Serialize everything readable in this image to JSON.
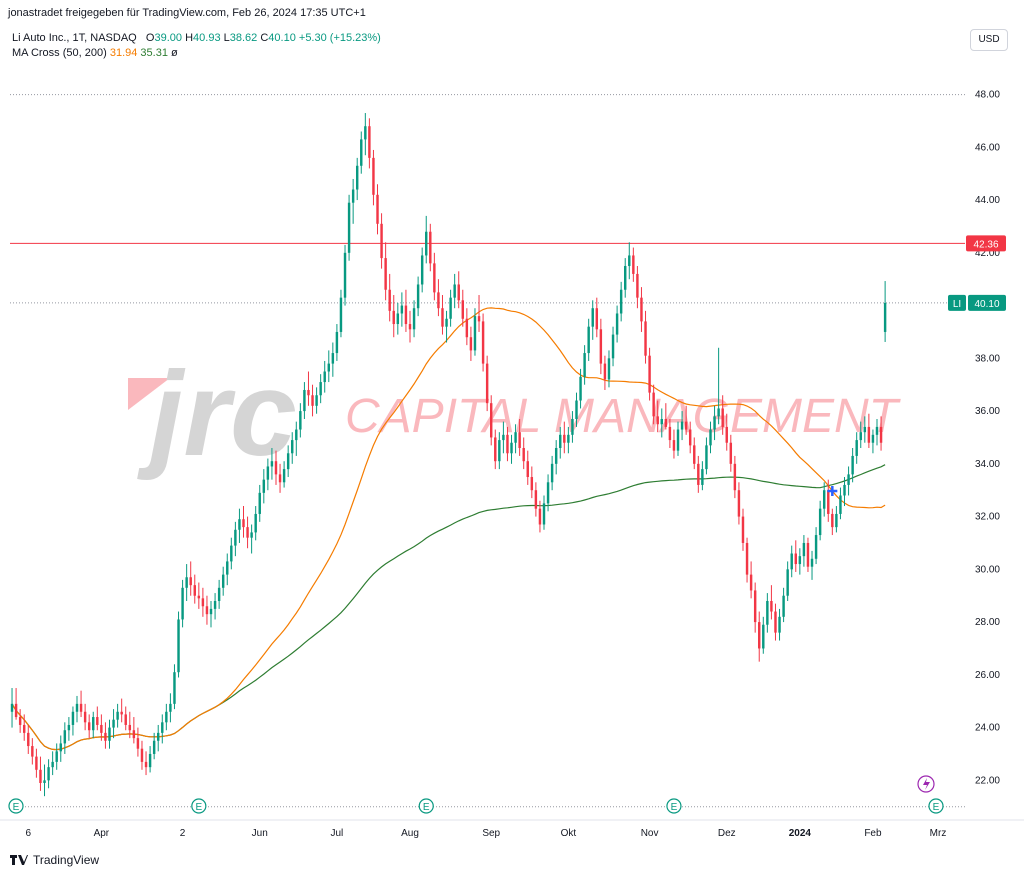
{
  "header": {
    "shared_by": "jonastradet freigegeben für TradingView.com, Feb 26, 2024 17:35 UTC+1"
  },
  "legend": {
    "symbol": "Li Auto Inc., 1T, NASDAQ",
    "open_label": "O",
    "open": "39.00",
    "high_label": "H",
    "high": "40.93",
    "low_label": "L",
    "low": "38.62",
    "close_label": "C",
    "close": "40.10",
    "change": "+5.30 (+15.23%)",
    "indicator": "MA Cross (50, 200)",
    "ma50": "31.94",
    "ma200": "35.31",
    "hidden_symbol": "ø"
  },
  "currency": "USD",
  "watermark": {
    "logo": "jrc",
    "text": "CAPITAL MANAGEMENT"
  },
  "price_labels": {
    "resistance": "42.36",
    "ticker": "LI",
    "last": "40.10"
  },
  "footer": {
    "brand": "TradingView"
  },
  "colors": {
    "up": "#089981",
    "down": "#f23645",
    "ma50": "#f57c00",
    "ma200": "#2e7d32",
    "resistance": "#f23645",
    "earnings": "#089981",
    "dividend": "#9c27b0"
  },
  "chart_data": {
    "type": "candlestick",
    "ylim": [
      20.8,
      49.5
    ],
    "y_ticks": [
      22,
      24,
      26,
      28,
      30,
      32,
      34,
      36,
      38,
      40,
      42,
      44,
      46,
      48
    ],
    "y_tick_labels": [
      "22.00",
      "24.00",
      "26.00",
      "28.00",
      "30.00",
      "32.00",
      "34.00",
      "36.00",
      "38.00",
      "40.00",
      "42.00",
      "44.00",
      "46.00",
      "48.00"
    ],
    "x_tick_labels": [
      "6",
      "Apr",
      "2",
      "Jun",
      "Jul",
      "Aug",
      "Sep",
      "Okt",
      "Nov",
      "Dez",
      "2024",
      "Feb",
      "Mrz"
    ],
    "x_tick_bold": [
      false,
      false,
      false,
      false,
      false,
      false,
      false,
      false,
      false,
      false,
      true,
      false,
      false
    ],
    "n_bars": 230,
    "x_tick_bars": [
      4,
      22,
      42,
      61,
      80,
      98,
      118,
      137,
      157,
      176,
      194,
      212,
      229
    ],
    "resistance_level": 42.36,
    "last_price": 40.1,
    "reference_levels": [
      48.0,
      40.1,
      21.0
    ],
    "ohlc": [
      [
        24.6,
        25.5,
        24.0,
        24.9
      ],
      [
        24.9,
        25.5,
        24.3,
        24.4
      ],
      [
        24.4,
        24.7,
        23.8,
        24.1
      ],
      [
        24.1,
        24.5,
        23.5,
        23.8
      ],
      [
        23.8,
        24.1,
        23.0,
        23.3
      ],
      [
        23.3,
        23.6,
        22.6,
        22.9
      ],
      [
        22.9,
        23.2,
        22.1,
        22.4
      ],
      [
        22.4,
        22.9,
        21.6,
        21.9
      ],
      [
        21.9,
        22.6,
        21.4,
        22.0
      ],
      [
        22.0,
        22.8,
        21.7,
        22.5
      ],
      [
        22.5,
        23.1,
        22.2,
        22.7
      ],
      [
        22.7,
        23.4,
        22.4,
        23.1
      ],
      [
        23.1,
        23.7,
        22.7,
        23.4
      ],
      [
        23.4,
        24.2,
        23.0,
        23.9
      ],
      [
        23.9,
        24.4,
        23.5,
        24.1
      ],
      [
        24.1,
        24.8,
        23.7,
        24.6
      ],
      [
        24.6,
        25.2,
        24.2,
        24.9
      ],
      [
        24.9,
        25.4,
        24.4,
        24.6
      ],
      [
        24.6,
        24.9,
        23.9,
        24.2
      ],
      [
        24.2,
        24.5,
        23.6,
        23.9
      ],
      [
        23.9,
        24.6,
        23.6,
        24.4
      ],
      [
        24.4,
        24.8,
        23.9,
        24.1
      ],
      [
        24.1,
        24.5,
        23.5,
        23.8
      ],
      [
        23.8,
        24.2,
        23.2,
        23.5
      ],
      [
        23.5,
        24.3,
        23.2,
        24.0
      ],
      [
        24.0,
        24.7,
        23.6,
        24.3
      ],
      [
        24.3,
        24.9,
        24.0,
        24.6
      ],
      [
        24.6,
        25.1,
        24.2,
        24.5
      ],
      [
        24.5,
        24.8,
        23.9,
        24.1
      ],
      [
        24.1,
        24.6,
        23.6,
        23.9
      ],
      [
        23.9,
        24.4,
        23.4,
        23.6
      ],
      [
        23.6,
        24.0,
        22.9,
        23.2
      ],
      [
        23.2,
        23.5,
        22.4,
        22.7
      ],
      [
        22.7,
        23.1,
        22.2,
        22.5
      ],
      [
        22.5,
        23.3,
        22.3,
        23.0
      ],
      [
        23.0,
        23.8,
        22.8,
        23.5
      ],
      [
        23.5,
        24.1,
        23.1,
        23.8
      ],
      [
        23.8,
        24.5,
        23.4,
        24.2
      ],
      [
        24.2,
        24.9,
        23.9,
        24.6
      ],
      [
        24.6,
        25.3,
        24.2,
        24.9
      ],
      [
        24.9,
        26.4,
        24.7,
        26.1
      ],
      [
        26.1,
        28.4,
        25.9,
        28.1
      ],
      [
        28.1,
        29.6,
        27.8,
        29.3
      ],
      [
        29.3,
        30.2,
        28.8,
        29.7
      ],
      [
        29.7,
        30.3,
        29.0,
        29.4
      ],
      [
        29.4,
        29.8,
        28.7,
        29.0
      ],
      [
        29.0,
        29.5,
        28.5,
        28.9
      ],
      [
        28.9,
        29.3,
        28.2,
        28.6
      ],
      [
        28.6,
        29.0,
        27.9,
        28.3
      ],
      [
        28.3,
        28.8,
        27.8,
        28.5
      ],
      [
        28.5,
        29.1,
        28.1,
        28.8
      ],
      [
        28.8,
        29.6,
        28.5,
        29.3
      ],
      [
        29.3,
        30.1,
        29.0,
        29.8
      ],
      [
        29.8,
        30.6,
        29.4,
        30.3
      ],
      [
        30.3,
        31.2,
        30.0,
        30.9
      ],
      [
        30.9,
        31.8,
        30.5,
        31.5
      ],
      [
        31.5,
        32.3,
        31.0,
        31.9
      ],
      [
        31.9,
        32.4,
        31.2,
        31.6
      ],
      [
        31.6,
        32.0,
        30.8,
        31.2
      ],
      [
        31.2,
        31.7,
        30.6,
        31.4
      ],
      [
        31.4,
        32.4,
        31.1,
        32.1
      ],
      [
        32.1,
        33.2,
        31.8,
        32.9
      ],
      [
        32.9,
        33.8,
        32.5,
        33.4
      ],
      [
        33.4,
        34.2,
        33.0,
        33.9
      ],
      [
        33.9,
        34.6,
        33.4,
        34.1
      ],
      [
        34.1,
        34.5,
        33.2,
        33.6
      ],
      [
        33.6,
        34.0,
        32.9,
        33.3
      ],
      [
        33.3,
        34.1,
        33.1,
        33.8
      ],
      [
        33.8,
        34.7,
        33.5,
        34.4
      ],
      [
        34.4,
        35.2,
        34.0,
        34.9
      ],
      [
        34.9,
        35.6,
        34.3,
        35.3
      ],
      [
        35.3,
        36.3,
        35.0,
        36.0
      ],
      [
        36.0,
        37.1,
        35.7,
        36.8
      ],
      [
        36.8,
        37.5,
        36.2,
        36.6
      ],
      [
        36.6,
        37.0,
        35.8,
        36.2
      ],
      [
        36.2,
        36.9,
        35.9,
        36.6
      ],
      [
        36.6,
        37.4,
        36.3,
        37.1
      ],
      [
        37.1,
        37.9,
        36.7,
        37.5
      ],
      [
        37.5,
        38.3,
        37.1,
        37.8
      ],
      [
        37.8,
        38.6,
        37.3,
        38.2
      ],
      [
        38.2,
        39.3,
        37.9,
        39.0
      ],
      [
        39.0,
        40.6,
        38.8,
        40.3
      ],
      [
        40.3,
        42.3,
        40.0,
        42.0
      ],
      [
        42.0,
        44.2,
        41.7,
        43.9
      ],
      [
        43.9,
        44.8,
        43.1,
        44.4
      ],
      [
        44.4,
        45.6,
        44.0,
        45.3
      ],
      [
        45.3,
        46.6,
        45.0,
        46.3
      ],
      [
        46.3,
        47.3,
        45.7,
        46.8
      ],
      [
        46.8,
        47.1,
        45.2,
        45.6
      ],
      [
        45.6,
        45.9,
        43.8,
        44.2
      ],
      [
        44.2,
        44.6,
        42.7,
        43.1
      ],
      [
        43.1,
        43.5,
        41.4,
        41.8
      ],
      [
        41.8,
        42.4,
        40.2,
        40.6
      ],
      [
        40.6,
        41.2,
        39.4,
        39.8
      ],
      [
        39.8,
        40.4,
        38.8,
        39.3
      ],
      [
        39.3,
        40.1,
        38.9,
        39.7
      ],
      [
        39.7,
        40.5,
        39.2,
        40.0
      ],
      [
        40.0,
        40.6,
        39.0,
        39.3
      ],
      [
        39.3,
        39.8,
        38.6,
        39.1
      ],
      [
        39.1,
        40.2,
        38.8,
        39.9
      ],
      [
        39.9,
        41.1,
        39.6,
        40.8
      ],
      [
        40.8,
        42.2,
        40.5,
        41.9
      ],
      [
        41.9,
        43.4,
        41.6,
        42.8
      ],
      [
        42.8,
        43.1,
        41.3,
        41.6
      ],
      [
        41.6,
        42.0,
        40.2,
        40.5
      ],
      [
        40.5,
        41.0,
        39.6,
        39.9
      ],
      [
        39.9,
        40.4,
        38.9,
        39.2
      ],
      [
        39.2,
        39.8,
        38.6,
        39.5
      ],
      [
        39.5,
        40.6,
        39.2,
        40.3
      ],
      [
        40.3,
        41.2,
        39.9,
        40.8
      ],
      [
        40.8,
        41.3,
        39.9,
        40.2
      ],
      [
        40.2,
        40.6,
        39.2,
        39.5
      ],
      [
        39.5,
        39.9,
        38.5,
        38.8
      ],
      [
        38.8,
        39.2,
        37.9,
        38.3
      ],
      [
        38.3,
        39.9,
        38.1,
        39.6
      ],
      [
        39.6,
        40.4,
        39.0,
        39.4
      ],
      [
        39.4,
        39.7,
        37.5,
        37.8
      ],
      [
        37.8,
        38.1,
        36.0,
        36.3
      ],
      [
        36.3,
        36.6,
        34.7,
        35.0
      ],
      [
        35.0,
        35.3,
        33.8,
        34.1
      ],
      [
        34.1,
        35.2,
        33.8,
        34.9
      ],
      [
        34.9,
        35.6,
        34.4,
        35.1
      ],
      [
        35.1,
        35.4,
        34.1,
        34.4
      ],
      [
        34.4,
        35.1,
        34.0,
        34.8
      ],
      [
        34.8,
        35.5,
        34.4,
        35.2
      ],
      [
        35.2,
        35.7,
        34.3,
        34.6
      ],
      [
        34.6,
        35.0,
        33.8,
        34.1
      ],
      [
        34.1,
        34.5,
        33.2,
        33.5
      ],
      [
        33.5,
        33.9,
        32.7,
        33.0
      ],
      [
        33.0,
        33.3,
        32.0,
        32.3
      ],
      [
        32.3,
        32.6,
        31.4,
        31.7
      ],
      [
        31.7,
        32.8,
        31.5,
        32.5
      ],
      [
        32.5,
        33.6,
        32.2,
        33.3
      ],
      [
        33.3,
        34.3,
        33.0,
        34.0
      ],
      [
        34.0,
        34.9,
        33.6,
        34.6
      ],
      [
        34.6,
        35.4,
        34.2,
        35.1
      ],
      [
        35.1,
        35.6,
        34.4,
        34.8
      ],
      [
        34.8,
        35.4,
        34.4,
        35.1
      ],
      [
        35.1,
        36.0,
        34.8,
        35.7
      ],
      [
        35.7,
        36.7,
        35.4,
        36.4
      ],
      [
        36.4,
        37.6,
        36.1,
        37.3
      ],
      [
        37.3,
        38.5,
        37.0,
        38.2
      ],
      [
        38.2,
        39.5,
        37.9,
        39.2
      ],
      [
        39.2,
        40.2,
        38.7,
        39.9
      ],
      [
        39.9,
        40.3,
        38.8,
        39.1
      ],
      [
        39.1,
        39.5,
        37.4,
        37.8
      ],
      [
        37.8,
        38.1,
        36.8,
        37.2
      ],
      [
        37.2,
        38.3,
        36.9,
        38.0
      ],
      [
        38.0,
        39.2,
        37.7,
        38.9
      ],
      [
        38.9,
        40.0,
        38.6,
        39.7
      ],
      [
        39.7,
        40.9,
        39.4,
        40.6
      ],
      [
        40.6,
        41.8,
        40.3,
        41.5
      ],
      [
        41.5,
        42.4,
        41.0,
        41.9
      ],
      [
        41.9,
        42.2,
        40.9,
        41.2
      ],
      [
        41.2,
        41.5,
        39.9,
        40.3
      ],
      [
        40.3,
        40.7,
        39.0,
        39.4
      ],
      [
        39.4,
        39.8,
        37.8,
        38.1
      ],
      [
        38.1,
        38.4,
        36.4,
        36.7
      ],
      [
        36.7,
        37.0,
        35.5,
        35.8
      ],
      [
        35.8,
        36.4,
        35.2,
        35.5
      ],
      [
        35.5,
        36.1,
        35.0,
        35.7
      ],
      [
        35.7,
        36.3,
        35.3,
        35.4
      ],
      [
        35.4,
        35.7,
        34.6,
        34.9
      ],
      [
        34.9,
        35.3,
        34.2,
        34.5
      ],
      [
        34.5,
        35.6,
        34.3,
        35.3
      ],
      [
        35.3,
        36.0,
        34.9,
        35.6
      ],
      [
        35.6,
        36.2,
        35.1,
        35.3
      ],
      [
        35.3,
        35.6,
        34.4,
        34.7
      ],
      [
        34.7,
        35.0,
        33.8,
        34.0
      ],
      [
        34.0,
        34.3,
        32.9,
        33.2
      ],
      [
        33.2,
        34.1,
        33.0,
        33.8
      ],
      [
        33.8,
        35.0,
        33.6,
        34.7
      ],
      [
        34.7,
        35.6,
        34.4,
        35.3
      ],
      [
        35.3,
        36.2,
        34.9,
        35.8
      ],
      [
        35.8,
        38.4,
        35.5,
        36.1
      ],
      [
        36.1,
        36.6,
        35.1,
        35.4
      ],
      [
        35.4,
        35.9,
        34.5,
        34.8
      ],
      [
        34.8,
        35.1,
        33.7,
        34.0
      ],
      [
        34.0,
        34.3,
        32.7,
        33.0
      ],
      [
        33.0,
        33.3,
        31.7,
        32.0
      ],
      [
        32.0,
        32.3,
        30.7,
        31.0
      ],
      [
        31.0,
        31.2,
        29.5,
        29.8
      ],
      [
        29.8,
        30.3,
        28.9,
        29.2
      ],
      [
        29.2,
        29.5,
        27.6,
        28.0
      ],
      [
        28.0,
        28.4,
        26.5,
        27.0
      ],
      [
        27.0,
        28.2,
        26.8,
        27.9
      ],
      [
        27.9,
        29.1,
        27.6,
        28.8
      ],
      [
        28.8,
        29.4,
        28.1,
        28.4
      ],
      [
        28.4,
        28.7,
        27.3,
        27.6
      ],
      [
        27.6,
        28.5,
        27.3,
        28.2
      ],
      [
        28.2,
        29.3,
        28.0,
        29.0
      ],
      [
        29.0,
        30.3,
        28.8,
        30.0
      ],
      [
        30.0,
        30.9,
        29.7,
        30.6
      ],
      [
        30.6,
        31.1,
        29.9,
        30.2
      ],
      [
        30.2,
        30.8,
        29.8,
        30.5
      ],
      [
        30.5,
        31.3,
        30.1,
        31.0
      ],
      [
        31.0,
        31.2,
        29.9,
        30.1
      ],
      [
        30.1,
        30.7,
        29.6,
        30.4
      ],
      [
        30.4,
        31.6,
        30.2,
        31.3
      ],
      [
        31.3,
        32.6,
        31.1,
        32.3
      ],
      [
        32.3,
        33.3,
        32.0,
        33.0
      ],
      [
        33.0,
        33.4,
        31.8,
        32.1
      ],
      [
        32.1,
        32.3,
        31.3,
        31.6
      ],
      [
        31.6,
        32.4,
        31.4,
        32.1
      ],
      [
        32.1,
        33.1,
        31.9,
        32.8
      ],
      [
        32.8,
        33.5,
        32.4,
        33.2
      ],
      [
        33.2,
        33.9,
        32.8,
        33.6
      ],
      [
        33.6,
        34.6,
        33.3,
        34.3
      ],
      [
        34.3,
        35.2,
        34.0,
        34.9
      ],
      [
        34.9,
        35.6,
        34.6,
        35.2
      ],
      [
        35.2,
        35.8,
        34.8,
        35.4
      ],
      [
        35.4,
        35.9,
        34.6,
        34.8
      ],
      [
        34.8,
        35.3,
        34.4,
        35.1
      ],
      [
        35.1,
        35.7,
        34.7,
        35.4
      ],
      [
        35.4,
        35.8,
        34.5,
        34.8
      ],
      [
        39.0,
        40.93,
        38.62,
        40.1
      ]
    ]
  }
}
